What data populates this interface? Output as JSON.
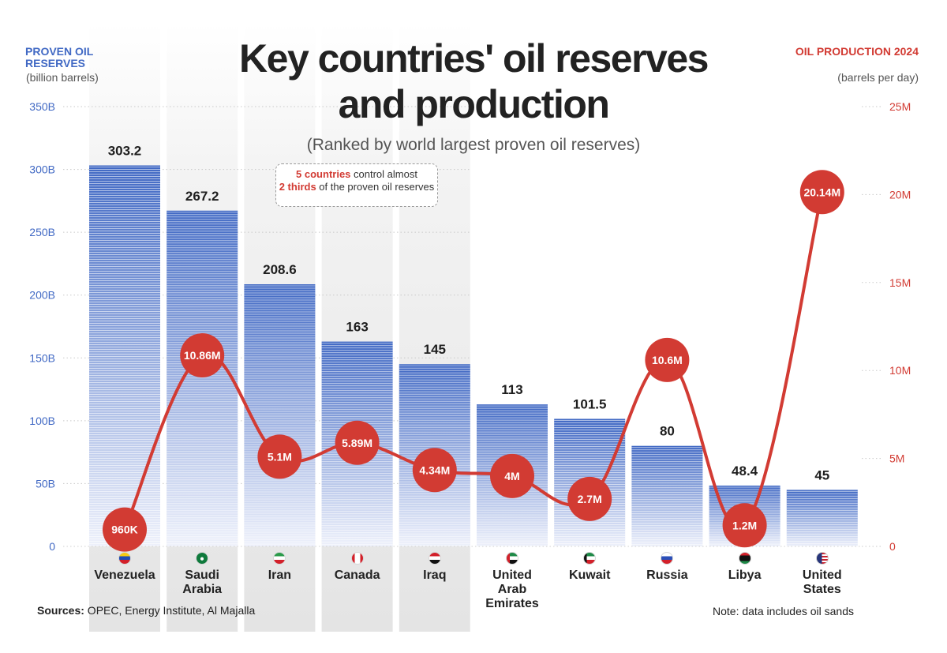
{
  "title_line1": "Key countries' oil reserves",
  "title_line2": "and production",
  "subtitle": "(Ranked by world largest proven oil reserves)",
  "left_axis": {
    "title": "PROVEN OIL RESERVES",
    "unit": "(billion barrels)"
  },
  "right_axis": {
    "title": "OIL PRODUCTION 2024",
    "unit": "(barrels per day)"
  },
  "annotation": {
    "bold1": "5 countries",
    "text1": " control almost ",
    "bold2": "2 thirds",
    "text2": " of the proven oil reserves"
  },
  "sources": {
    "label": "Sources:",
    "text": " OPEC, Energy Institute, Al Majalla"
  },
  "note": "Note: data includes oil sands",
  "colors": {
    "reserves": "#4169c4",
    "production": "#d23b33",
    "highlight_column": "#ececec"
  },
  "chart_data": {
    "type": "bar",
    "categories": [
      "Venezuela",
      "Saudi Arabia",
      "Iran",
      "Canada",
      "Iraq",
      "United Arab Emirates",
      "Kuwait",
      "Russia",
      "Libya",
      "United States"
    ],
    "category_labels": [
      "Venezuela",
      "Saudi\nArabia",
      "Iran",
      "Canada",
      "Iraq",
      "United\nArab\nEmirates",
      "Kuwait",
      "Russia",
      "Libya",
      "United\nStates"
    ],
    "flag_icons": [
      "venezuela-flag-icon",
      "saudi-arabia-flag-icon",
      "iran-flag-icon",
      "canada-flag-icon",
      "iraq-flag-icon",
      "uae-flag-icon",
      "kuwait-flag-icon",
      "russia-flag-icon",
      "libya-flag-icon",
      "united-states-flag-icon"
    ],
    "highlighted_categories": [
      "Venezuela",
      "Saudi Arabia",
      "Iran",
      "Canada",
      "Iraq"
    ],
    "series": [
      {
        "name": "PROVEN OIL RESERVES",
        "type": "bar",
        "axis": "left",
        "values": [
          303.2,
          267.2,
          208.6,
          163,
          145,
          113,
          101.5,
          80,
          48.4,
          45
        ],
        "labels": [
          "303.2",
          "267.2",
          "208.6",
          "163",
          "145",
          "113",
          "101.5",
          "80",
          "48.4",
          "45"
        ]
      },
      {
        "name": "OIL PRODUCTION 2024",
        "type": "line",
        "axis": "right",
        "values": [
          960000,
          10860000,
          5100000,
          5890000,
          4340000,
          4000000,
          2700000,
          10600000,
          1200000,
          20140000
        ],
        "labels": [
          "960K",
          "10.86M",
          "5.1M",
          "5.89M",
          "4.34M",
          "4M",
          "2.7M",
          "10.6M",
          "1.2M",
          "20.14M"
        ]
      }
    ],
    "left_axis": {
      "min": 0,
      "max": 350,
      "ticks": [
        0,
        50,
        100,
        150,
        200,
        250,
        300,
        350
      ],
      "tick_labels": [
        "0",
        "50B",
        "100B",
        "150B",
        "200B",
        "250B",
        "300B",
        "350B"
      ]
    },
    "right_axis": {
      "min": 0,
      "max": 25000000,
      "ticks": [
        0,
        5000000,
        10000000,
        15000000,
        20000000,
        25000000
      ],
      "tick_labels": [
        "0",
        "5M",
        "10M",
        "15M",
        "20M",
        "25M"
      ]
    },
    "grid": "dotted"
  }
}
